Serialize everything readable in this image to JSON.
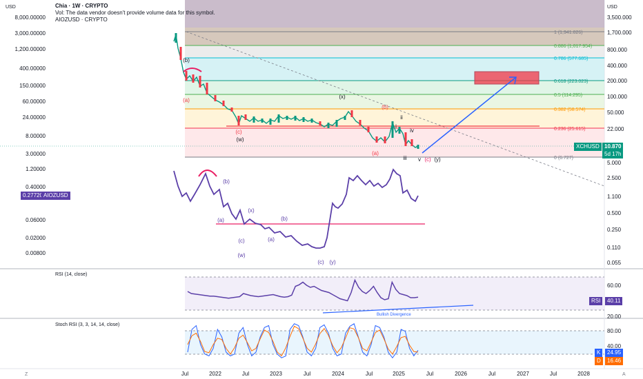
{
  "header": {
    "title": "Chia · 1W · CRYPTO",
    "vol_note": "Vol: The data vendor doesn't provide volume data for this symbol.",
    "overlay": "AIOZUSD · CRYPTO"
  },
  "axis": {
    "currency_left": "USD",
    "currency_right": "USD",
    "corner_left": "Z",
    "corner_right": "A"
  },
  "chart_data": [
    {
      "type": "line",
      "title": "Chia · 1W · CRYPTO",
      "series": [
        {
          "name": "XCHUSD",
          "last": "10.870",
          "countdown": "5d 17h"
        },
        {
          "name": "AIOZUSD",
          "last": "0.27720"
        }
      ],
      "x_ticks": [
        "Jul",
        "2022",
        "Jul",
        "2023",
        "Jul",
        "2024",
        "Jul",
        "2025",
        "Jul",
        "2026",
        "Jul",
        "2027",
        "Jul",
        "2028"
      ],
      "left_ticks": [
        "8,000.00000",
        "3,000.00000",
        "1,200.00000",
        "400.00000",
        "150.00000",
        "60.00000",
        "24.00000",
        "8.00000",
        "3.00000",
        "1.20000",
        "0.40000",
        "0.06000",
        "0.02000",
        "0.00800"
      ],
      "right_ticks": [
        "3,500.000",
        "1,700.000",
        "800.000",
        "400.000",
        "200.000",
        "100.000",
        "50.000",
        "22.000",
        "10.870",
        "5.000",
        "2.500",
        "1.100",
        "0.500",
        "0.250",
        "0.110",
        "0.055"
      ],
      "fib_levels": [
        {
          "label": "1 (1,941.826)",
          "color": "#787b86"
        },
        {
          "label": "0.886 (1,017.954)",
          "color": "#4caf50"
        },
        {
          "label": "0.786 (577.685)",
          "color": "#00bcd4"
        },
        {
          "label": "0.618 (223.023)",
          "color": "#089981"
        },
        {
          "label": "0.5 (114.295)",
          "color": "#4caf50"
        },
        {
          "label": "0.382 (58.574)",
          "color": "#ff9800"
        },
        {
          "label": "0.236 (25.615)",
          "color": "#f23645"
        },
        {
          "label": "0 (6.727)",
          "color": "#787b86"
        }
      ],
      "annotations": [
        "(b)",
        "(a)",
        "(x)",
        "(c)",
        "(w)",
        "(b)",
        "(a)",
        "ii",
        "i",
        "iv",
        "iii",
        "v",
        "(c)",
        "(y)",
        "(b)",
        "(a)",
        "(x)",
        "(b)",
        "(c)",
        "(a)",
        "(w)",
        "(c)",
        "(y)"
      ]
    },
    {
      "type": "line",
      "title": "RSI (14, close)",
      "series": [
        {
          "name": "RSI",
          "last": "40.11"
        }
      ],
      "right_ticks": [
        "60.00",
        "40.00",
        "20.00"
      ],
      "annotation": "Bullish Divergence",
      "values": [
        52,
        48,
        47,
        46,
        45,
        44,
        43,
        43,
        42,
        41,
        40,
        39,
        40,
        41,
        42,
        48,
        46,
        44,
        43,
        42,
        43,
        44,
        45,
        46,
        44,
        42,
        41,
        42,
        45,
        62,
        65,
        70,
        64,
        60,
        62,
        58,
        54,
        52,
        50,
        46,
        42,
        38,
        36,
        34,
        50,
        74,
        60,
        52,
        48,
        54,
        62,
        50,
        40,
        36,
        38,
        70,
        56,
        48,
        46,
        44,
        40,
        40,
        41
      ]
    },
    {
      "type": "line",
      "title": "Stoch RSI (3, 3, 14, 14, close)",
      "series": [
        {
          "name": "K",
          "last": "24.95"
        },
        {
          "name": "D",
          "last": "16.46"
        }
      ],
      "right_ticks": [
        "80.00",
        "40.00"
      ],
      "values_k": [
        20,
        80,
        90,
        40,
        15,
        10,
        30,
        80,
        60,
        20,
        10,
        15,
        70,
        85,
        40,
        10,
        20,
        60,
        85,
        90,
        40,
        15,
        5,
        10,
        80,
        95,
        90,
        60,
        20,
        10,
        30,
        85,
        92,
        70,
        30,
        10,
        15,
        70,
        88,
        95,
        60,
        20,
        10,
        40,
        90,
        85,
        60,
        20,
        5,
        20,
        80,
        75,
        30,
        10,
        25
      ]
    }
  ],
  "colors": {
    "xch": "#089981",
    "aioz": "#5b3fa8",
    "rsi": "#5b3fa8",
    "k_badge": "#2962ff",
    "d_badge": "#ff6d00",
    "arrow": "#2962ff",
    "target": "#f23645"
  },
  "badges": {
    "xch_name": "XCHUSD",
    "xch_price": "10.870",
    "xch_time": "5d 17h",
    "aioz_price": "0.27720",
    "aioz_name": "AIOZUSD",
    "rsi_name": "RSI",
    "rsi_val": "40.11",
    "k_name": "K",
    "k_val": "24.95",
    "d_name": "D",
    "d_val": "16.46"
  },
  "panes": {
    "rsi_title": "RSI (14, close)",
    "stoch_title": "Stoch RSI (3, 3, 14, 14, close)",
    "divergence": "Bullish Divergence"
  }
}
